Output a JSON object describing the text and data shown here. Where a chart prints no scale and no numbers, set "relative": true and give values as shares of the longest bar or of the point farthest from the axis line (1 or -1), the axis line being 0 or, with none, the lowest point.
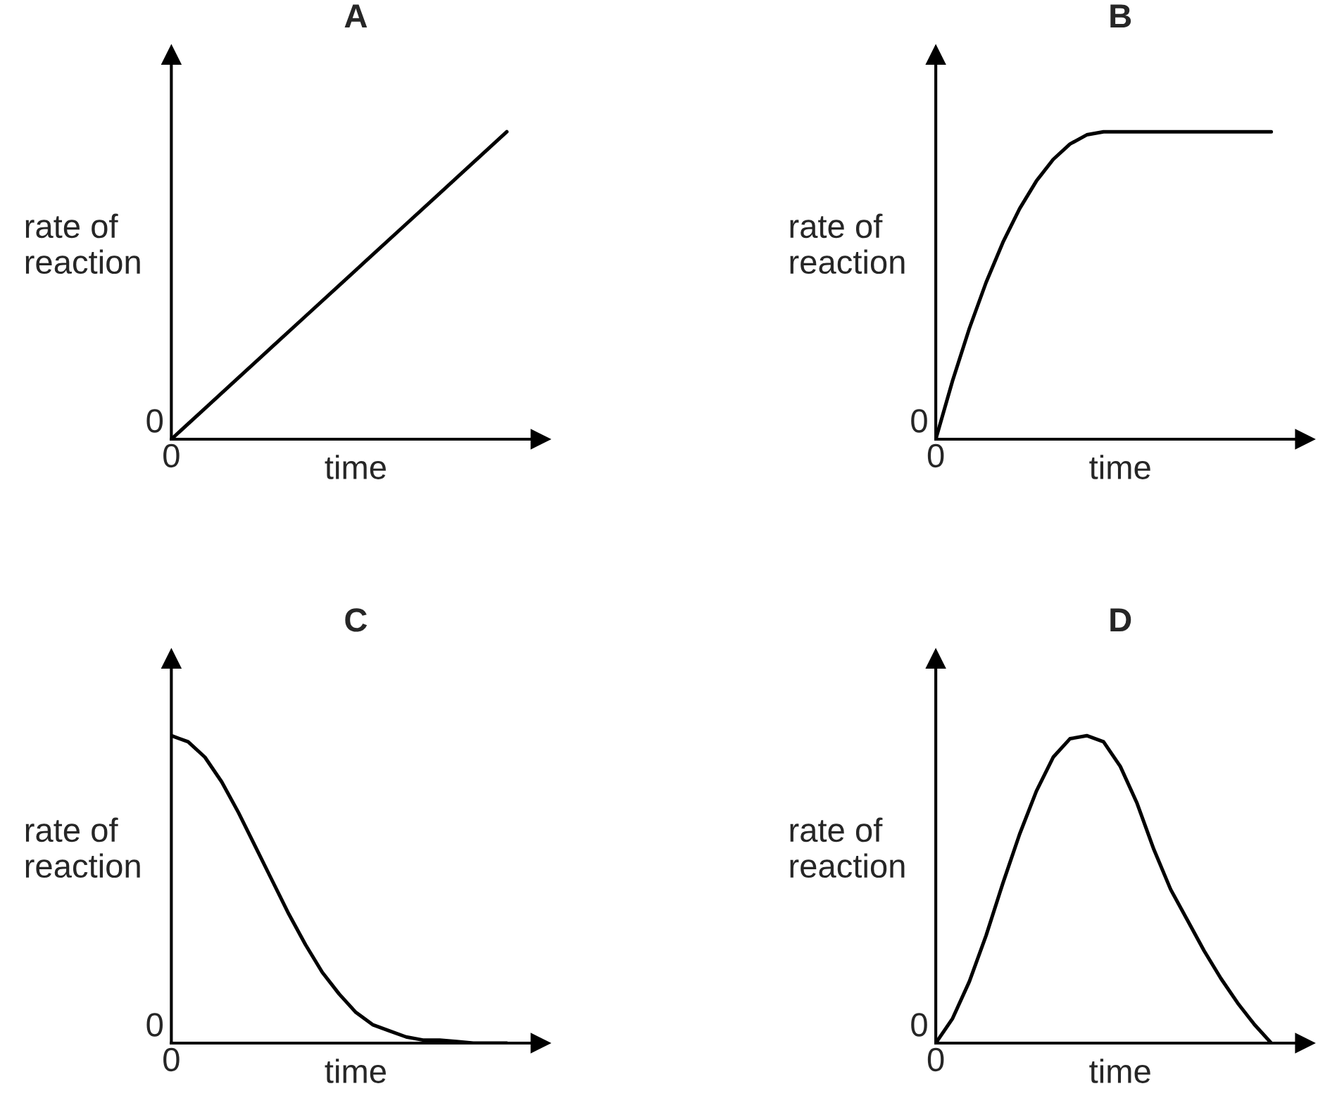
{
  "chart_data": [
    {
      "type": "line",
      "title": "A",
      "xlabel": "time",
      "ylabel": "rate of\nreaction",
      "relative": true,
      "annotations": [
        "0",
        "0"
      ],
      "categories": [
        null,
        null,
        null,
        null,
        null,
        null,
        null,
        null,
        null,
        null,
        null
      ],
      "series": [
        {
          "color": "#000000",
          "values": [
            0,
            0.1,
            0.2,
            0.3,
            0.4,
            0.5,
            0.6,
            0.7,
            0.8,
            0.9,
            1
          ]
        }
      ]
    },
    {
      "type": "line",
      "title": "B",
      "xlabel": "time",
      "ylabel": "rate of\nreaction",
      "relative": true,
      "annotations": [
        "0",
        "0"
      ],
      "categories": [
        null,
        null,
        null,
        null,
        null,
        null,
        null,
        null,
        null,
        null,
        null,
        null,
        null,
        null,
        null,
        null,
        null,
        null,
        null,
        null,
        null
      ],
      "series": [
        {
          "color": "#000000",
          "values": [
            0,
            0.19,
            0.36,
            0.51,
            0.64,
            0.75,
            0.84,
            0.91,
            0.96,
            0.99,
            1,
            1,
            1,
            1,
            1,
            1,
            1,
            1,
            1,
            1,
            1
          ]
        }
      ]
    },
    {
      "type": "line",
      "title": "C",
      "xlabel": "time",
      "ylabel": "rate of\nreaction",
      "relative": true,
      "annotations": [
        "0",
        "0"
      ],
      "categories": [
        null,
        null,
        null,
        null,
        null,
        null,
        null,
        null,
        null,
        null,
        null,
        null,
        null,
        null,
        null,
        null,
        null,
        null,
        null,
        null,
        null
      ],
      "series": [
        {
          "color": "#000000",
          "values": [
            1,
            0.98,
            0.93,
            0.85,
            0.75,
            0.64,
            0.53,
            0.42,
            0.32,
            0.23,
            0.16,
            0.1,
            0.06,
            0.04,
            0.02,
            0.01,
            0.01,
            0.005,
            0,
            0,
            0
          ]
        }
      ]
    },
    {
      "type": "line",
      "title": "D",
      "xlabel": "time",
      "ylabel": "rate of\nreaction",
      "relative": true,
      "annotations": [
        "0",
        "0"
      ],
      "categories": [
        null,
        null,
        null,
        null,
        null,
        null,
        null,
        null,
        null,
        null,
        null,
        null,
        null,
        null,
        null,
        null,
        null,
        null,
        null,
        null,
        null
      ],
      "series": [
        {
          "color": "#000000",
          "values": [
            0,
            0.08,
            0.2,
            0.35,
            0.52,
            0.68,
            0.82,
            0.93,
            0.99,
            1,
            0.98,
            0.9,
            0.78,
            0.63,
            0.5,
            0.4,
            0.3,
            0.21,
            0.13,
            0.06,
            0
          ]
        }
      ]
    }
  ]
}
